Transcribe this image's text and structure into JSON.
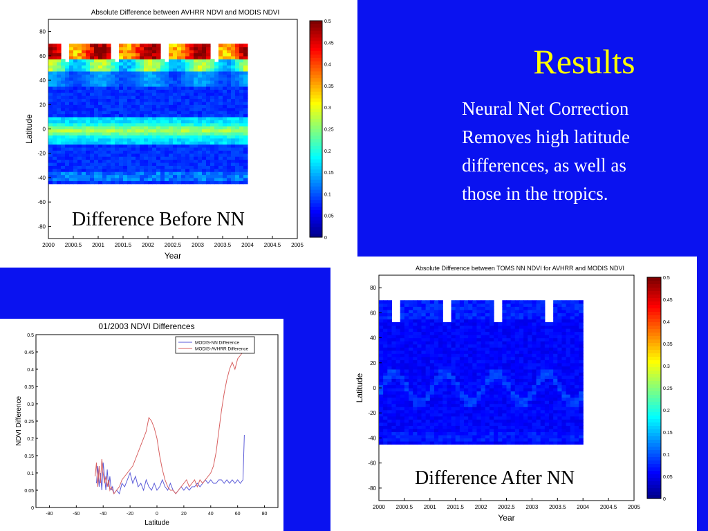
{
  "slide": {
    "title": "Results",
    "text_lines": [
      "Neural Net Correction",
      "Removes high latitude",
      "differences, as well as",
      "those in the tropics."
    ],
    "colors": {
      "background": "#0a12f0",
      "title": "#ffff00",
      "text": "#ffffff"
    }
  },
  "chart_data": [
    {
      "type": "heatmap",
      "title": "Absolute Difference between AVHRR NDVI and MODIS NDVI",
      "caption": "Difference Before NN",
      "xlabel": "Year",
      "ylabel": "Latitude",
      "x_ticks": [
        "2000",
        "2000.5",
        "2001",
        "2001.5",
        "2002",
        "2002.5",
        "2003",
        "2003.5",
        "2004",
        "2004.5",
        "2005"
      ],
      "y_ticks": [
        "80",
        "60",
        "40",
        "20",
        "0",
        "-20",
        "-40",
        "-60",
        "-80"
      ],
      "xlim": [
        2000,
        2005
      ],
      "ylim": [
        -90,
        90
      ],
      "data_x_range": [
        2000,
        2004
      ],
      "data_lat_range": [
        -45,
        70
      ],
      "colorbar_ticks": [
        "0.5",
        "0.45",
        "0.4",
        "0.35",
        "0.3",
        "0.25",
        "0.2",
        "0.15",
        "0.1",
        "0.05",
        "0"
      ],
      "colorbar_range": [
        0,
        0.5
      ],
      "colormap": "jet",
      "pattern": "before",
      "grid": false
    },
    {
      "type": "heatmap",
      "title": "Absolute Difference between TOMS NN NDVI for AVHRR and MODIS NDVI",
      "caption": "Difference After NN",
      "xlabel": "Year",
      "ylabel": "Latitude",
      "x_ticks": [
        "2000",
        "2000.5",
        "2001",
        "2001.5",
        "2002",
        "2002.5",
        "2003",
        "2003.5",
        "2004",
        "2004.5",
        "2005"
      ],
      "y_ticks": [
        "80",
        "60",
        "40",
        "20",
        "0",
        "-20",
        "-40",
        "-60",
        "-80"
      ],
      "xlim": [
        2000,
        2005
      ],
      "ylim": [
        -90,
        90
      ],
      "data_x_range": [
        2000,
        2004
      ],
      "data_lat_range": [
        -45,
        70
      ],
      "colorbar_ticks": [
        "0.5",
        "0.45",
        "0.4",
        "0.35",
        "0.3",
        "0.25",
        "0.2",
        "0.15",
        "0.1",
        "0.05",
        "0"
      ],
      "colorbar_range": [
        0,
        0.5
      ],
      "colormap": "jet",
      "pattern": "after",
      "grid": false
    },
    {
      "type": "line",
      "title": "01/2003 NDVI Differences",
      "xlabel": "Latitude",
      "ylabel": "NDVI Difference",
      "xlim": [
        -90,
        90
      ],
      "ylim": [
        0,
        0.5
      ],
      "x_ticks": [
        "-80",
        "-60",
        "-40",
        "-20",
        "0",
        "20",
        "40",
        "60",
        "80"
      ],
      "y_ticks": [
        "0",
        "0.05",
        "0.1",
        "0.15",
        "0.2",
        "0.25",
        "0.3",
        "0.35",
        "0.4",
        "0.45",
        "0.5"
      ],
      "legend_position": "top-right",
      "grid": false,
      "series": [
        {
          "name": "MODIS-NN Difference",
          "color": "#5a5ad8",
          "x": [
            -45,
            -44,
            -43,
            -42,
            -41,
            -40,
            -39,
            -38,
            -37,
            -36,
            -35,
            -34,
            -33,
            -32,
            -30,
            -28,
            -26,
            -24,
            -22,
            -20,
            -18,
            -16,
            -14,
            -12,
            -10,
            -8,
            -6,
            -4,
            -2,
            0,
            2,
            4,
            6,
            8,
            10,
            12,
            14,
            16,
            18,
            20,
            22,
            24,
            26,
            28,
            30,
            32,
            34,
            36,
            38,
            40,
            42,
            44,
            46,
            48,
            50,
            52,
            54,
            56,
            58,
            60,
            62,
            64,
            65
          ],
          "values": [
            0.07,
            0.12,
            0.06,
            0.1,
            0.05,
            0.13,
            0.09,
            0.05,
            0.11,
            0.06,
            0.09,
            0.05,
            0.06,
            0.04,
            0.05,
            0.04,
            0.07,
            0.06,
            0.08,
            0.1,
            0.07,
            0.09,
            0.06,
            0.07,
            0.05,
            0.08,
            0.06,
            0.05,
            0.07,
            0.05,
            0.06,
            0.08,
            0.06,
            0.05,
            0.07,
            0.05,
            0.04,
            0.05,
            0.06,
            0.05,
            0.06,
            0.05,
            0.06,
            0.06,
            0.07,
            0.06,
            0.07,
            0.08,
            0.07,
            0.08,
            0.07,
            0.07,
            0.08,
            0.08,
            0.07,
            0.08,
            0.07,
            0.08,
            0.07,
            0.08,
            0.07,
            0.08,
            0.21
          ]
        },
        {
          "name": "MODIS-AVHRR Difference",
          "color": "#d86060",
          "x": [
            -46,
            -45,
            -44,
            -43,
            -42,
            -41,
            -40,
            -39,
            -38,
            -37,
            -36,
            -35,
            -34,
            -32,
            -30,
            -28,
            -26,
            -24,
            -22,
            -20,
            -18,
            -16,
            -14,
            -12,
            -10,
            -8,
            -6,
            -4,
            -2,
            0,
            2,
            4,
            6,
            8,
            10,
            12,
            14,
            16,
            18,
            20,
            22,
            24,
            26,
            28,
            30,
            32,
            34,
            36,
            38,
            40,
            42,
            44,
            46,
            48,
            50,
            52,
            54,
            56,
            58,
            60,
            62,
            64,
            66
          ],
          "values": [
            0.09,
            0.13,
            0.06,
            0.12,
            0.07,
            0.14,
            0.1,
            0.07,
            0.09,
            0.06,
            0.08,
            0.05,
            0.06,
            0.04,
            0.05,
            0.06,
            0.08,
            0.09,
            0.1,
            0.11,
            0.12,
            0.14,
            0.16,
            0.18,
            0.2,
            0.22,
            0.26,
            0.25,
            0.23,
            0.2,
            0.15,
            0.11,
            0.08,
            0.06,
            0.05,
            0.05,
            0.04,
            0.05,
            0.06,
            0.07,
            0.08,
            0.06,
            0.07,
            0.08,
            0.06,
            0.08,
            0.07,
            0.08,
            0.09,
            0.1,
            0.12,
            0.16,
            0.22,
            0.28,
            0.33,
            0.37,
            0.4,
            0.42,
            0.4,
            0.43,
            0.44,
            0.45,
            0.47
          ]
        }
      ]
    }
  ]
}
